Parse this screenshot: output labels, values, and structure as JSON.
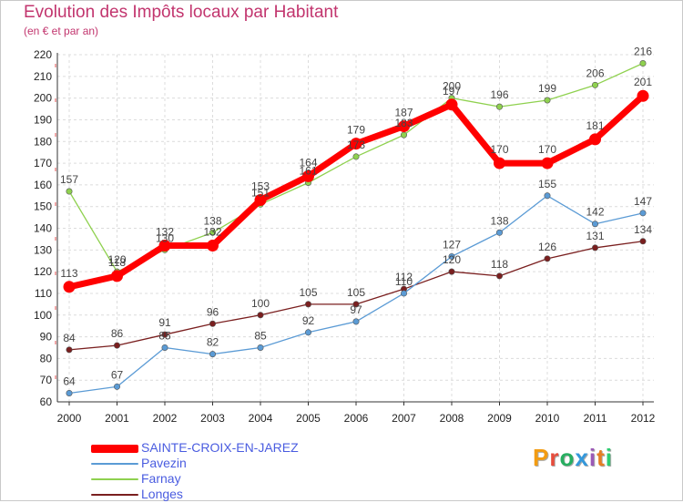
{
  "header": {
    "title": "Evolution des Impôts locaux par Habitant",
    "subtitle": "(en € et par an)"
  },
  "logo": {
    "text": "Proxiti",
    "colors": [
      "#f39c12",
      "#e74c3c",
      "#27ae60",
      "#3498db",
      "#9b59b6",
      "#e67e22",
      "#2ecc71"
    ]
  },
  "chart_data": {
    "type": "line",
    "title": "Evolution des Impôts locaux par Habitant",
    "subtitle": "(en € et par an)",
    "xlabel": "",
    "ylabel": "",
    "x": [
      "2000",
      "2001",
      "2002",
      "2003",
      "2004",
      "2005",
      "2006",
      "2007",
      "2008",
      "2009",
      "2010",
      "2011",
      "2012"
    ],
    "ylim": [
      60,
      220
    ],
    "yticks": [
      "60",
      "70",
      "80",
      "90",
      "100",
      "110",
      "120",
      "130",
      "140",
      "150",
      "160",
      "170",
      "180",
      "190",
      "200",
      "210",
      "220"
    ],
    "grid": true,
    "legend_position": "bottom-left",
    "series": [
      {
        "name": "SAINTE-CROIX-EN-JAREZ",
        "color": "#ff0000",
        "values": [
          113,
          118,
          132,
          132,
          153,
          164,
          179,
          187,
          197,
          170,
          170,
          181,
          201
        ],
        "labels": [
          "113",
          "118",
          "132",
          "132",
          "153",
          "164",
          "179",
          "187",
          "197",
          "170",
          "170",
          "181",
          "201"
        ]
      },
      {
        "name": "Pavezin",
        "color": "#5b9bd5",
        "values": [
          64,
          67,
          85,
          82,
          85,
          92,
          97,
          110,
          127,
          138,
          155,
          142,
          147
        ],
        "labels": [
          "64",
          "67",
          "85",
          "82",
          "85",
          "92",
          "97",
          "110",
          "127",
          "138",
          "155",
          "142",
          "147"
        ]
      },
      {
        "name": "Farnay",
        "color": "#8fd14f",
        "values": [
          157,
          120,
          130,
          138,
          151,
          161,
          173,
          183,
          200,
          196,
          199,
          206,
          216
        ],
        "labels": [
          "157",
          "120",
          "130",
          "138",
          "151",
          "161",
          "173",
          "183",
          "200",
          "196",
          "199",
          "206",
          "216"
        ]
      },
      {
        "name": "Longes",
        "color": "#7a1f1f",
        "values": [
          84,
          86,
          91,
          96,
          100,
          105,
          105,
          112,
          120,
          118,
          126,
          131,
          134
        ],
        "labels": [
          "84",
          "86",
          "91",
          "96",
          "100",
          "105",
          "105",
          "112",
          "120",
          "118",
          "126",
          "131",
          "134"
        ]
      }
    ]
  }
}
